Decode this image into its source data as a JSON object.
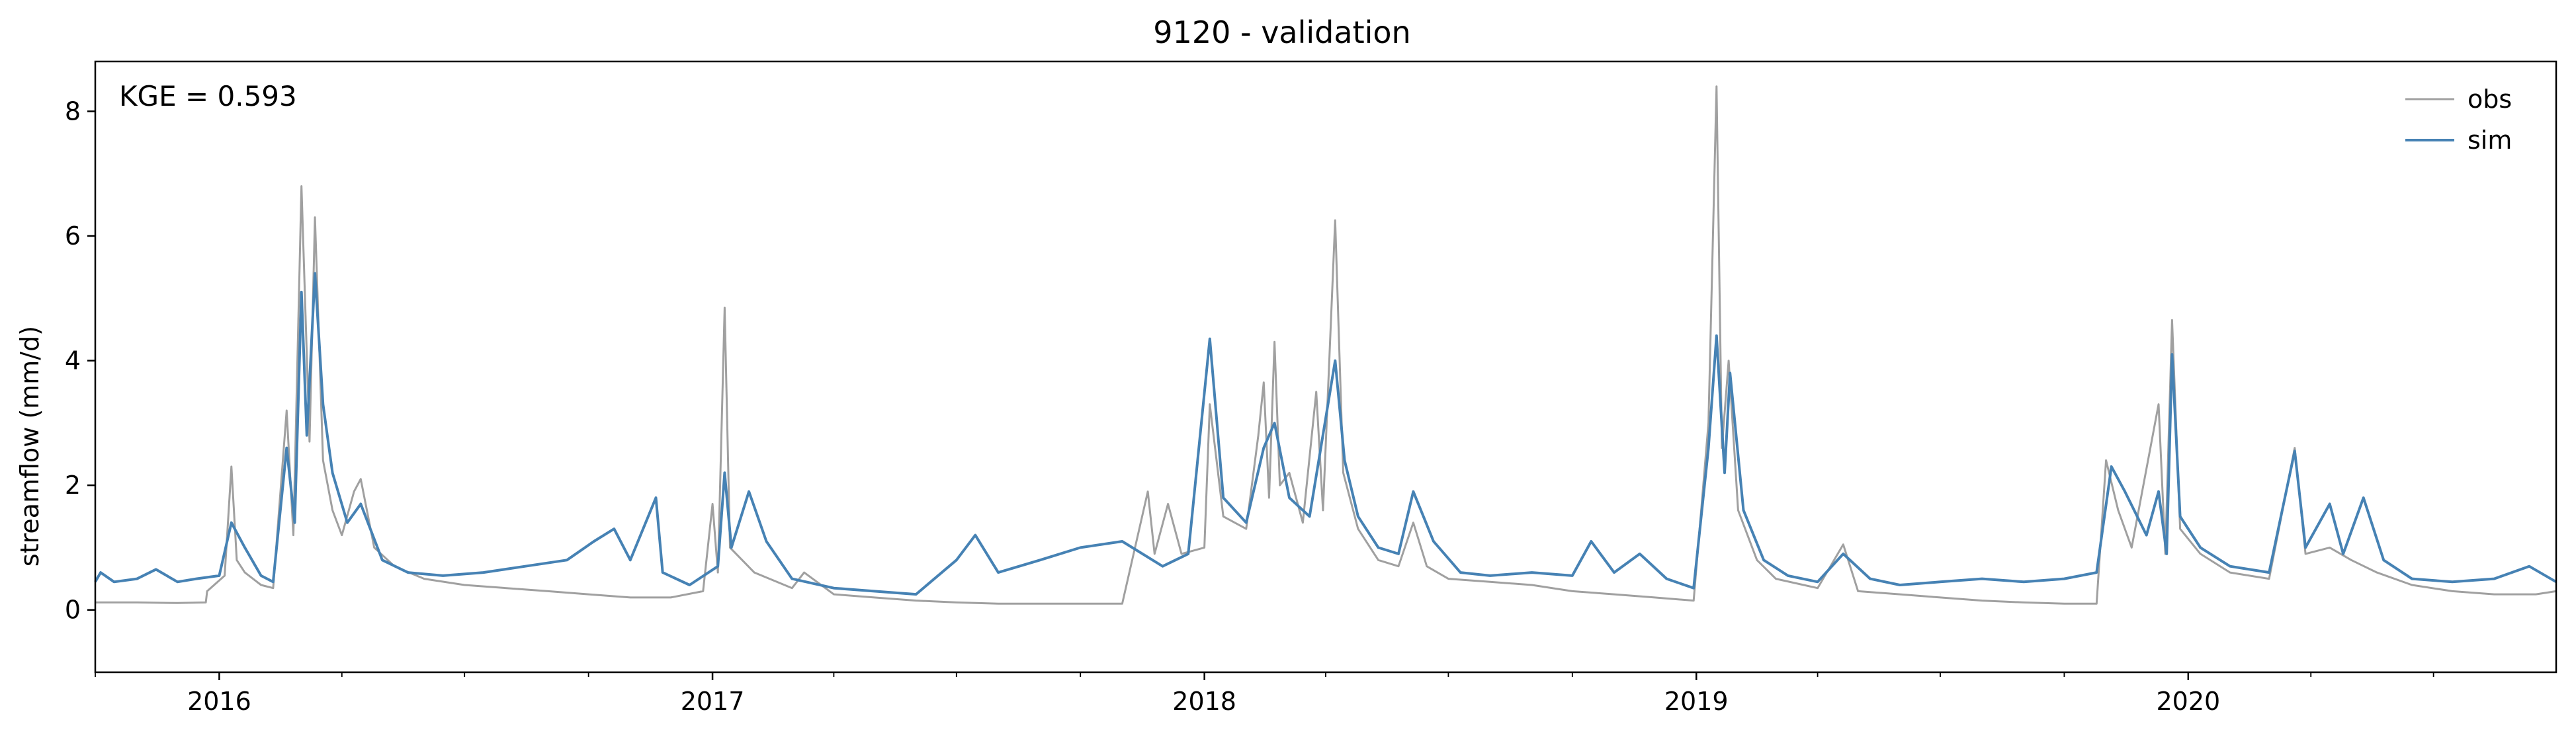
{
  "chart_data": {
    "type": "line",
    "title": "9120 - validation",
    "xlabel": "",
    "ylabel": "streamflow (mm/d)",
    "annotation": "KGE = 0.593",
    "xlim": [
      "2015-10-01",
      "2020-09-30"
    ],
    "ylim": [
      -1,
      8.8
    ],
    "x_ticks": [
      {
        "date": "2016-01-01",
        "label": "2016"
      },
      {
        "date": "2017-01-01",
        "label": "2017"
      },
      {
        "date": "2018-01-01",
        "label": "2018"
      },
      {
        "date": "2019-01-01",
        "label": "2019"
      },
      {
        "date": "2020-01-01",
        "label": "2020"
      }
    ],
    "y_ticks": [
      0,
      2,
      4,
      6,
      8
    ],
    "grid": false,
    "legend_position": "top-right",
    "series": [
      {
        "name": "obs",
        "color": "#a0a0a0",
        "points": [
          [
            "2015-10-01",
            0.12
          ],
          [
            "2015-11-01",
            0.12
          ],
          [
            "2015-12-01",
            0.11
          ],
          [
            "2015-12-22",
            0.12
          ],
          [
            "2015-12-23",
            0.3
          ],
          [
            "2016-01-05",
            0.55
          ],
          [
            "2016-01-10",
            2.3
          ],
          [
            "2016-01-14",
            0.8
          ],
          [
            "2016-01-20",
            0.6
          ],
          [
            "2016-02-01",
            0.4
          ],
          [
            "2016-02-10",
            0.35
          ],
          [
            "2016-02-20",
            3.2
          ],
          [
            "2016-02-25",
            1.2
          ],
          [
            "2016-03-02",
            6.8
          ],
          [
            "2016-03-08",
            2.7
          ],
          [
            "2016-03-12",
            6.3
          ],
          [
            "2016-03-18",
            2.4
          ],
          [
            "2016-03-25",
            1.6
          ],
          [
            "2016-04-01",
            1.2
          ],
          [
            "2016-04-10",
            1.9
          ],
          [
            "2016-04-15",
            2.1
          ],
          [
            "2016-04-25",
            1.0
          ],
          [
            "2016-05-10",
            0.7
          ],
          [
            "2016-06-01",
            0.5
          ],
          [
            "2016-07-01",
            0.4
          ],
          [
            "2016-08-01",
            0.35
          ],
          [
            "2016-09-01",
            0.3
          ],
          [
            "2016-10-01",
            0.25
          ],
          [
            "2016-11-01",
            0.2
          ],
          [
            "2016-12-01",
            0.2
          ],
          [
            "2016-12-25",
            0.3
          ],
          [
            "2017-01-01",
            1.7
          ],
          [
            "2017-01-05",
            0.6
          ],
          [
            "2017-01-10",
            4.85
          ],
          [
            "2017-01-14",
            1.0
          ],
          [
            "2017-02-01",
            0.6
          ],
          [
            "2017-03-01",
            0.35
          ],
          [
            "2017-03-10",
            0.6
          ],
          [
            "2017-04-01",
            0.25
          ],
          [
            "2017-05-01",
            0.2
          ],
          [
            "2017-06-01",
            0.15
          ],
          [
            "2017-07-01",
            0.12
          ],
          [
            "2017-08-01",
            0.1
          ],
          [
            "2017-09-01",
            0.1
          ],
          [
            "2017-10-01",
            0.1
          ],
          [
            "2017-11-01",
            0.1
          ],
          [
            "2017-11-20",
            1.9
          ],
          [
            "2017-11-25",
            0.9
          ],
          [
            "2017-12-05",
            1.7
          ],
          [
            "2017-12-15",
            0.9
          ],
          [
            "2018-01-01",
            1.0
          ],
          [
            "2018-01-05",
            3.3
          ],
          [
            "2018-01-15",
            1.5
          ],
          [
            "2018-02-01",
            1.3
          ],
          [
            "2018-02-10",
            2.8
          ],
          [
            "2018-02-14",
            3.65
          ],
          [
            "2018-02-18",
            1.8
          ],
          [
            "2018-02-22",
            4.3
          ],
          [
            "2018-02-26",
            2.0
          ],
          [
            "2018-03-05",
            2.2
          ],
          [
            "2018-03-15",
            1.4
          ],
          [
            "2018-03-25",
            3.5
          ],
          [
            "2018-03-30",
            1.6
          ],
          [
            "2018-04-08",
            6.25
          ],
          [
            "2018-04-14",
            2.2
          ],
          [
            "2018-04-25",
            1.3
          ],
          [
            "2018-05-10",
            0.8
          ],
          [
            "2018-05-25",
            0.7
          ],
          [
            "2018-06-05",
            1.4
          ],
          [
            "2018-06-15",
            0.7
          ],
          [
            "2018-07-01",
            0.5
          ],
          [
            "2018-08-01",
            0.45
          ],
          [
            "2018-09-01",
            0.4
          ],
          [
            "2018-10-01",
            0.3
          ],
          [
            "2018-11-01",
            0.25
          ],
          [
            "2018-12-01",
            0.2
          ],
          [
            "2018-12-30",
            0.15
          ],
          [
            "2019-01-10",
            3.0
          ],
          [
            "2019-01-16",
            8.4
          ],
          [
            "2019-01-20",
            2.6
          ],
          [
            "2019-01-25",
            4.0
          ],
          [
            "2019-02-01",
            1.6
          ],
          [
            "2019-02-15",
            0.8
          ],
          [
            "2019-03-01",
            0.5
          ],
          [
            "2019-04-01",
            0.35
          ],
          [
            "2019-04-20",
            1.05
          ],
          [
            "2019-05-01",
            0.3
          ],
          [
            "2019-06-01",
            0.25
          ],
          [
            "2019-07-01",
            0.2
          ],
          [
            "2019-08-01",
            0.15
          ],
          [
            "2019-09-01",
            0.12
          ],
          [
            "2019-10-01",
            0.1
          ],
          [
            "2019-10-25",
            0.1
          ],
          [
            "2019-11-01",
            2.4
          ],
          [
            "2019-11-10",
            1.6
          ],
          [
            "2019-11-20",
            1.0
          ],
          [
            "2019-12-10",
            3.3
          ],
          [
            "2019-12-15",
            0.9
          ],
          [
            "2019-12-20",
            4.65
          ],
          [
            "2019-12-26",
            1.3
          ],
          [
            "2020-01-10",
            0.9
          ],
          [
            "2020-02-01",
            0.6
          ],
          [
            "2020-03-01",
            0.5
          ],
          [
            "2020-03-20",
            2.6
          ],
          [
            "2020-03-28",
            0.9
          ],
          [
            "2020-04-15",
            1.0
          ],
          [
            "2020-05-01",
            0.8
          ],
          [
            "2020-05-20",
            0.6
          ],
          [
            "2020-06-15",
            0.4
          ],
          [
            "2020-07-15",
            0.3
          ],
          [
            "2020-08-15",
            0.25
          ],
          [
            "2020-09-15",
            0.25
          ],
          [
            "2020-09-30",
            0.3
          ]
        ]
      },
      {
        "name": "sim",
        "color": "#4682b4",
        "points": [
          [
            "2015-10-01",
            0.45
          ],
          [
            "2015-10-05",
            0.6
          ],
          [
            "2015-10-15",
            0.45
          ],
          [
            "2015-11-01",
            0.5
          ],
          [
            "2015-11-15",
            0.65
          ],
          [
            "2015-12-01",
            0.45
          ],
          [
            "2015-12-15",
            0.5
          ],
          [
            "2016-01-01",
            0.55
          ],
          [
            "2016-01-10",
            1.4
          ],
          [
            "2016-01-20",
            1.0
          ],
          [
            "2016-02-01",
            0.55
          ],
          [
            "2016-02-10",
            0.45
          ],
          [
            "2016-02-20",
            2.6
          ],
          [
            "2016-02-26",
            1.4
          ],
          [
            "2016-03-02",
            5.1
          ],
          [
            "2016-03-06",
            2.8
          ],
          [
            "2016-03-12",
            5.4
          ],
          [
            "2016-03-18",
            3.3
          ],
          [
            "2016-03-25",
            2.2
          ],
          [
            "2016-04-05",
            1.4
          ],
          [
            "2016-04-15",
            1.7
          ],
          [
            "2016-05-01",
            0.8
          ],
          [
            "2016-05-20",
            0.6
          ],
          [
            "2016-06-15",
            0.55
          ],
          [
            "2016-07-15",
            0.6
          ],
          [
            "2016-08-15",
            0.7
          ],
          [
            "2016-09-15",
            0.8
          ],
          [
            "2016-10-05",
            1.1
          ],
          [
            "2016-10-20",
            1.3
          ],
          [
            "2016-11-01",
            0.8
          ],
          [
            "2016-11-20",
            1.8
          ],
          [
            "2016-11-25",
            0.6
          ],
          [
            "2016-12-15",
            0.4
          ],
          [
            "2017-01-05",
            0.7
          ],
          [
            "2017-01-10",
            2.2
          ],
          [
            "2017-01-15",
            1.0
          ],
          [
            "2017-01-28",
            1.9
          ],
          [
            "2017-02-10",
            1.1
          ],
          [
            "2017-03-01",
            0.5
          ],
          [
            "2017-04-01",
            0.35
          ],
          [
            "2017-05-01",
            0.3
          ],
          [
            "2017-06-01",
            0.25
          ],
          [
            "2017-07-01",
            0.8
          ],
          [
            "2017-07-15",
            1.2
          ],
          [
            "2017-08-01",
            0.6
          ],
          [
            "2017-09-01",
            0.8
          ],
          [
            "2017-10-01",
            1.0
          ],
          [
            "2017-11-01",
            1.1
          ],
          [
            "2017-12-01",
            0.7
          ],
          [
            "2017-12-20",
            0.9
          ],
          [
            "2018-01-05",
            4.35
          ],
          [
            "2018-01-15",
            1.8
          ],
          [
            "2018-02-01",
            1.4
          ],
          [
            "2018-02-14",
            2.6
          ],
          [
            "2018-02-22",
            3.0
          ],
          [
            "2018-03-05",
            1.8
          ],
          [
            "2018-03-20",
            1.5
          ],
          [
            "2018-04-08",
            4.0
          ],
          [
            "2018-04-15",
            2.4
          ],
          [
            "2018-04-25",
            1.5
          ],
          [
            "2018-05-10",
            1.0
          ],
          [
            "2018-05-25",
            0.9
          ],
          [
            "2018-06-05",
            1.9
          ],
          [
            "2018-06-20",
            1.1
          ],
          [
            "2018-07-10",
            0.6
          ],
          [
            "2018-08-01",
            0.55
          ],
          [
            "2018-09-01",
            0.6
          ],
          [
            "2018-10-01",
            0.55
          ],
          [
            "2018-10-15",
            1.1
          ],
          [
            "2018-11-01",
            0.6
          ],
          [
            "2018-11-20",
            0.9
          ],
          [
            "2018-12-10",
            0.5
          ],
          [
            "2018-12-30",
            0.35
          ],
          [
            "2019-01-10",
            2.6
          ],
          [
            "2019-01-16",
            4.4
          ],
          [
            "2019-01-22",
            2.2
          ],
          [
            "2019-01-26",
            3.8
          ],
          [
            "2019-02-05",
            1.6
          ],
          [
            "2019-02-20",
            0.8
          ],
          [
            "2019-03-10",
            0.55
          ],
          [
            "2019-04-01",
            0.45
          ],
          [
            "2019-04-20",
            0.9
          ],
          [
            "2019-05-10",
            0.5
          ],
          [
            "2019-06-01",
            0.4
          ],
          [
            "2019-07-01",
            0.45
          ],
          [
            "2019-08-01",
            0.5
          ],
          [
            "2019-09-01",
            0.45
          ],
          [
            "2019-10-01",
            0.5
          ],
          [
            "2019-10-25",
            0.6
          ],
          [
            "2019-11-05",
            2.3
          ],
          [
            "2019-11-15",
            1.9
          ],
          [
            "2019-12-01",
            1.2
          ],
          [
            "2019-12-10",
            1.9
          ],
          [
            "2019-12-16",
            0.9
          ],
          [
            "2019-12-20",
            4.1
          ],
          [
            "2019-12-26",
            1.5
          ],
          [
            "2020-01-10",
            1.0
          ],
          [
            "2020-02-01",
            0.7
          ],
          [
            "2020-03-01",
            0.6
          ],
          [
            "2020-03-20",
            2.55
          ],
          [
            "2020-03-28",
            1.0
          ],
          [
            "2020-04-15",
            1.7
          ],
          [
            "2020-04-25",
            0.9
          ],
          [
            "2020-05-10",
            1.8
          ],
          [
            "2020-05-25",
            0.8
          ],
          [
            "2020-06-15",
            0.5
          ],
          [
            "2020-07-15",
            0.45
          ],
          [
            "2020-08-15",
            0.5
          ],
          [
            "2020-09-10",
            0.7
          ],
          [
            "2020-09-30",
            0.45
          ]
        ]
      }
    ]
  }
}
